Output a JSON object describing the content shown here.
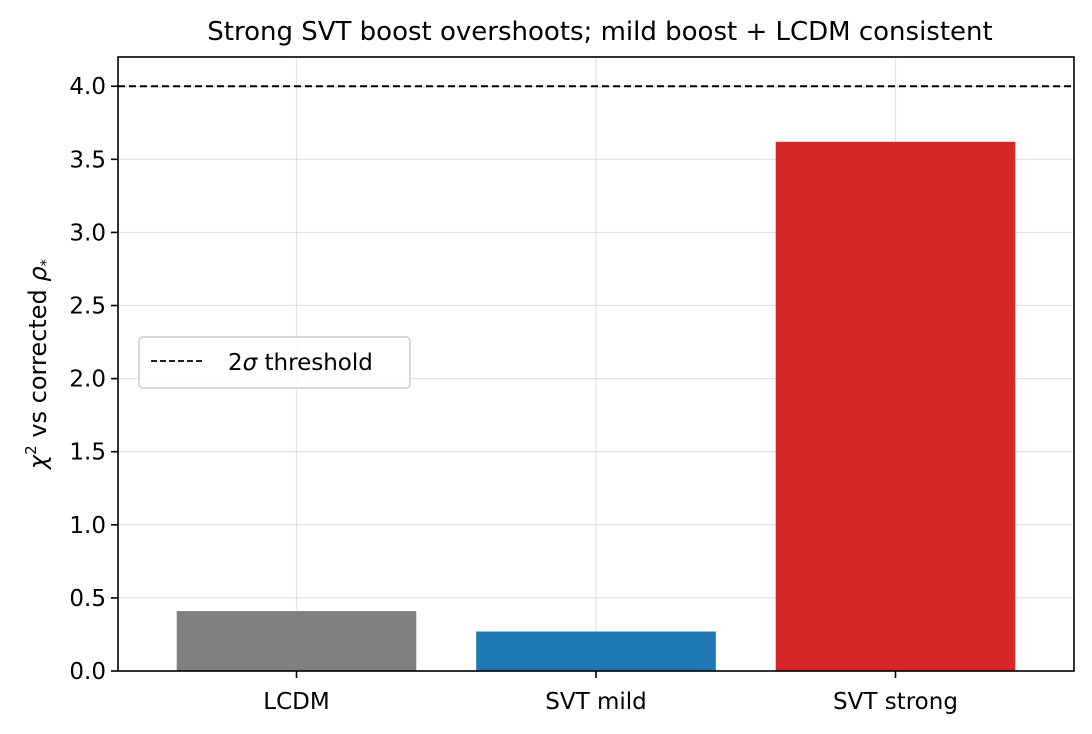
{
  "chart_data": {
    "type": "bar",
    "title": "Strong SVT boost overshoots; mild boost + LCDM consistent",
    "xlabel": "",
    "ylabel": "χ² vs corrected ρ*",
    "ylabel_parts": {
      "pre": "χ",
      "sup": "2",
      "mid": " vs corrected ",
      "rho": "ρ",
      "sub": "*"
    },
    "categories": [
      "LCDM",
      "SVT mild",
      "SVT strong"
    ],
    "values": [
      0.41,
      0.27,
      3.62
    ],
    "colors": [
      "#808080",
      "#1f77b4",
      "#d62728"
    ],
    "ylim": [
      0,
      4.2
    ],
    "yticks": [
      0.0,
      0.5,
      1.0,
      1.5,
      2.0,
      2.5,
      3.0,
      3.5,
      4.0
    ],
    "ytick_labels": [
      "0.0",
      "0.5",
      "1.0",
      "1.5",
      "2.0",
      "2.5",
      "3.0",
      "3.5",
      "4.0"
    ],
    "threshold": {
      "value": 4.0,
      "style": "dashed",
      "color": "#000000"
    },
    "grid": true,
    "legend": {
      "placement": "center-left",
      "entries": [
        {
          "label": "2σ threshold",
          "pre": "2",
          "sigma": "σ",
          "post": " threshold",
          "style": "dashed"
        }
      ]
    }
  }
}
